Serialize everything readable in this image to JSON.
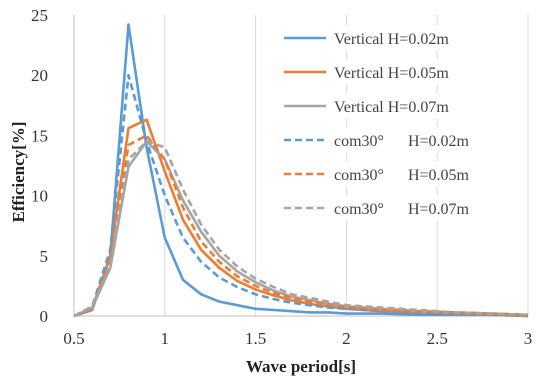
{
  "chart_data": {
    "type": "line",
    "xlabel": "Wave period[s]",
    "ylabel": "Efficiency[%]",
    "xlim": [
      0.5,
      3
    ],
    "ylim": [
      0,
      25
    ],
    "x_ticks": [
      0.5,
      1,
      1.5,
      2,
      2.5,
      3
    ],
    "y_ticks": [
      0,
      5,
      10,
      15,
      20,
      25
    ],
    "x_tick_labels": [
      "0.5",
      "1",
      "1.5",
      "2",
      "2.5",
      "3"
    ],
    "y_tick_labels": [
      "0",
      "5",
      "10",
      "15",
      "20",
      "25"
    ],
    "grid": {
      "vertical": true,
      "horizontal": false
    },
    "legend_position": "top-right",
    "series": [
      {
        "name": "Vertical H=0.02m",
        "color": "#5B9BD5",
        "dash": "solid",
        "x": [
          0.5,
          0.6,
          0.7,
          0.8,
          0.9,
          1.0,
          1.1,
          1.2,
          1.3,
          1.4,
          1.5,
          1.6,
          1.7,
          1.8,
          1.9,
          2.0,
          2.2,
          2.4,
          2.6,
          2.8,
          3.0
        ],
        "y": [
          0.0,
          0.5,
          5.0,
          24.2,
          14.0,
          6.5,
          3.0,
          1.8,
          1.2,
          0.9,
          0.6,
          0.5,
          0.4,
          0.3,
          0.3,
          0.2,
          0.2,
          0.1,
          0.1,
          0.1,
          0.0
        ]
      },
      {
        "name": "Vertical H=0.05m",
        "color": "#ED7D31",
        "dash": "solid",
        "x": [
          0.5,
          0.6,
          0.7,
          0.8,
          0.9,
          1.0,
          1.1,
          1.2,
          1.3,
          1.4,
          1.5,
          1.6,
          1.7,
          1.8,
          1.9,
          2.0,
          2.2,
          2.4,
          2.6,
          2.8,
          3.0
        ],
        "y": [
          0.0,
          0.6,
          5.0,
          15.6,
          16.3,
          12.0,
          8.0,
          5.5,
          4.0,
          2.9,
          2.2,
          1.7,
          1.3,
          1.0,
          0.8,
          0.6,
          0.4,
          0.3,
          0.2,
          0.1,
          0.0
        ]
      },
      {
        "name": "Vertical H=0.07m",
        "color": "#A5A5A5",
        "dash": "solid",
        "x": [
          0.5,
          0.6,
          0.7,
          0.8,
          0.9,
          1.0,
          1.1,
          1.2,
          1.3,
          1.4,
          1.5,
          1.6,
          1.7,
          1.8,
          1.9,
          2.0,
          2.2,
          2.4,
          2.6,
          2.8,
          3.0
        ],
        "y": [
          0.0,
          0.7,
          4.0,
          12.4,
          14.5,
          13.0,
          9.6,
          7.0,
          5.0,
          3.7,
          2.8,
          2.1,
          1.6,
          1.3,
          1.0,
          0.8,
          0.6,
          0.4,
          0.3,
          0.2,
          0.1
        ]
      },
      {
        "name": "com30°  H=0.02m",
        "color": "#5B9BD5",
        "dash": "dashed",
        "x": [
          0.5,
          0.6,
          0.7,
          0.8,
          0.9,
          1.0,
          1.1,
          1.2,
          1.3,
          1.4,
          1.5,
          1.6,
          1.7,
          1.8,
          1.9,
          2.0,
          2.2,
          2.4,
          2.6,
          2.8,
          3.0
        ],
        "y": [
          0.0,
          0.8,
          5.5,
          20.0,
          14.5,
          10.0,
          6.5,
          4.5,
          3.2,
          2.4,
          1.8,
          1.4,
          1.1,
          0.9,
          0.7,
          0.6,
          0.4,
          0.3,
          0.2,
          0.1,
          0.0
        ]
      },
      {
        "name": "com30°  H=0.05m",
        "color": "#ED7D31",
        "dash": "dashed",
        "x": [
          0.5,
          0.6,
          0.7,
          0.8,
          0.9,
          1.0,
          1.1,
          1.2,
          1.3,
          1.4,
          1.5,
          1.6,
          1.7,
          1.8,
          1.9,
          2.0,
          2.2,
          2.4,
          2.6,
          2.8,
          3.0
        ],
        "y": [
          0.0,
          0.7,
          4.5,
          14.2,
          15.0,
          13.0,
          9.0,
          6.2,
          4.5,
          3.3,
          2.5,
          1.9,
          1.5,
          1.2,
          1.0,
          0.8,
          0.5,
          0.4,
          0.3,
          0.2,
          0.1
        ]
      },
      {
        "name": "com30°  H=0.07m",
        "color": "#A5A5A5",
        "dash": "dashed",
        "x": [
          0.5,
          0.6,
          0.7,
          0.8,
          0.9,
          1.0,
          1.1,
          1.2,
          1.3,
          1.4,
          1.5,
          1.6,
          1.7,
          1.8,
          1.9,
          2.0,
          2.2,
          2.4,
          2.6,
          2.8,
          3.0
        ],
        "y": [
          0.0,
          0.8,
          4.2,
          13.0,
          14.5,
          14.0,
          10.5,
          7.6,
          5.5,
          4.1,
          3.1,
          2.4,
          1.8,
          1.5,
          1.2,
          0.9,
          0.7,
          0.5,
          0.3,
          0.2,
          0.1
        ]
      }
    ]
  }
}
